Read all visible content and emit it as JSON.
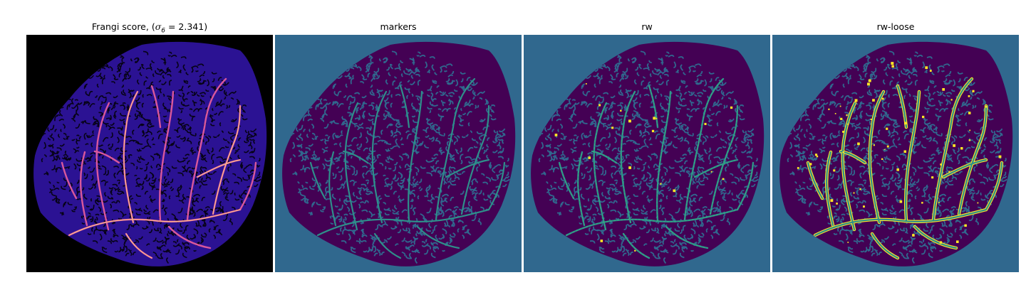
{
  "panels": [
    {
      "id": "frangi",
      "title_prefix": "Frangi score, (",
      "sigma_symbol": "σ",
      "sigma_subscript": "6",
      "sigma_value": " = 2.341)",
      "cmap": "magma"
    },
    {
      "id": "markers",
      "title": "markers",
      "cmap": "viridis"
    },
    {
      "id": "rw",
      "title": "rw",
      "cmap": "viridis"
    },
    {
      "id": "rw-loose",
      "title": "rw-loose",
      "cmap": "viridis"
    }
  ],
  "colors": {
    "magma_background": "#000000",
    "magma_tissue": "#2b1293",
    "magma_vessel": "#d9589b",
    "magma_highlight": "#fcb88a",
    "viridis_background": "#30688e",
    "viridis_tissue": "#440154",
    "viridis_vessel": "#2e8f8a",
    "viridis_rw_edge": "#35b779",
    "viridis_loose": "#fde725"
  }
}
